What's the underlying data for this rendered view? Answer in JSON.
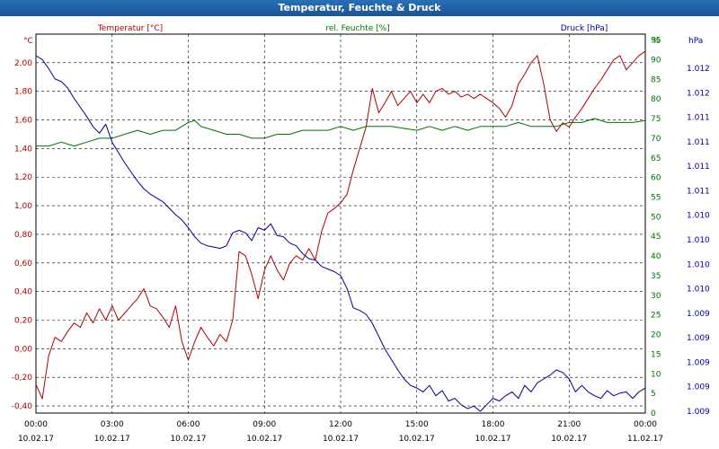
{
  "window": {
    "title": "Temperatur, Feuchte & Druck"
  },
  "chart_data": {
    "type": "line",
    "title": "Temperatur, Feuchte & Druck",
    "grid": true,
    "colors": {
      "temperature": "#b00000",
      "humidity": "#007000",
      "pressure": "#000090"
    },
    "x_ticks": [
      {
        "time": "00:00",
        "date": "10.02.17"
      },
      {
        "time": "03:00",
        "date": "10.02.17"
      },
      {
        "time": "06:00",
        "date": "10.02.17"
      },
      {
        "time": "09:00",
        "date": "10.02.17"
      },
      {
        "time": "12:00",
        "date": "10.02.17"
      },
      {
        "time": "15:00",
        "date": "10.02.17"
      },
      {
        "time": "18:00",
        "date": "10.02.17"
      },
      {
        "time": "21:00",
        "date": "10.02.17"
      },
      {
        "time": "00:00",
        "date": "11.02.17"
      }
    ],
    "xlim": [
      "10.02.17 00:00",
      "11.02.17 00:00"
    ],
    "axes": {
      "temperature": {
        "unit_label": "°C",
        "header": "Temperatur [°C]",
        "ylim": [
          -0.45,
          2.2
        ],
        "ticks": [
          "2,00",
          "1,80",
          "1,60",
          "1,40",
          "1,20",
          "1,00",
          "0,80",
          "0,60",
          "0,40",
          "0,20",
          "0,00",
          "-0,20",
          "-0,40"
        ]
      },
      "humidity": {
        "unit_label": "%",
        "header": "rel. Feuchte [%]",
        "ylim": [
          0,
          96.5
        ],
        "ticks": [
          "95",
          "90",
          "85",
          "80",
          "75",
          "70",
          "65",
          "60",
          "55",
          "50",
          "45",
          "40",
          "35",
          "30",
          "25",
          "20",
          "15",
          "10",
          "5",
          "0"
        ]
      },
      "pressure": {
        "unit_label": "hPa",
        "header": "Druck [hPa]",
        "ticks": [
          "1.012",
          "1.012",
          "1.011",
          "1.011",
          "1.011",
          "1.011",
          "1.010",
          "1.010",
          "1.010",
          "1.010",
          "1.009",
          "1.009",
          "1.009",
          "1.009",
          "1.009"
        ]
      }
    },
    "series": [
      {
        "name": "Temperatur [°C]",
        "axis": "temperature",
        "x": [
          "00:00",
          "00:15",
          "00:30",
          "00:45",
          "01:00",
          "01:15",
          "01:30",
          "01:45",
          "02:00",
          "02:15",
          "02:30",
          "02:45",
          "03:00",
          "03:15",
          "03:30",
          "03:45",
          "04:00",
          "04:15",
          "04:30",
          "04:45",
          "05:00",
          "05:15",
          "05:30",
          "05:45",
          "06:00",
          "06:15",
          "06:30",
          "06:45",
          "07:00",
          "07:15",
          "07:30",
          "07:45",
          "08:00",
          "08:15",
          "08:30",
          "08:45",
          "09:00",
          "09:15",
          "09:30",
          "09:45",
          "10:00",
          "10:15",
          "10:30",
          "10:45",
          "11:00",
          "11:15",
          "11:30",
          "11:45",
          "12:00",
          "12:15",
          "12:30",
          "12:45",
          "13:00",
          "13:15",
          "13:30",
          "13:45",
          "14:00",
          "14:15",
          "14:30",
          "14:45",
          "15:00",
          "15:15",
          "15:30",
          "15:45",
          "16:00",
          "16:15",
          "16:30",
          "16:45",
          "17:00",
          "17:15",
          "17:30",
          "17:45",
          "18:00",
          "18:15",
          "18:30",
          "18:45",
          "19:00",
          "19:15",
          "19:30",
          "19:45",
          "20:00",
          "20:15",
          "20:30",
          "20:45",
          "21:00",
          "21:15",
          "21:30",
          "21:45",
          "22:00",
          "22:15",
          "22:30",
          "22:45",
          "23:00",
          "23:15",
          "23:30",
          "23:45",
          "24:00"
        ],
        "values": [
          -0.25,
          -0.35,
          -0.05,
          0.08,
          0.05,
          0.12,
          0.18,
          0.15,
          0.25,
          0.18,
          0.28,
          0.2,
          0.3,
          0.2,
          0.25,
          0.3,
          0.35,
          0.42,
          0.3,
          0.28,
          0.22,
          0.15,
          0.3,
          0.05,
          -0.08,
          0.05,
          0.15,
          0.08,
          0.02,
          0.1,
          0.05,
          0.2,
          0.68,
          0.65,
          0.52,
          0.35,
          0.55,
          0.65,
          0.55,
          0.48,
          0.6,
          0.65,
          0.62,
          0.7,
          0.62,
          0.82,
          0.95,
          0.98,
          1.02,
          1.08,
          1.25,
          1.4,
          1.55,
          1.82,
          1.65,
          1.72,
          1.8,
          1.7,
          1.75,
          1.8,
          1.72,
          1.78,
          1.72,
          1.8,
          1.82,
          1.78,
          1.8,
          1.76,
          1.78,
          1.75,
          1.78,
          1.75,
          1.72,
          1.68,
          1.62,
          1.7,
          1.85,
          1.92,
          2.0,
          2.05,
          1.85,
          1.6,
          1.52,
          1.58,
          1.55,
          1.62,
          1.68,
          1.75,
          1.82,
          1.88,
          1.95,
          2.02,
          2.05,
          1.95,
          2.0,
          2.05,
          2.08
        ]
      },
      {
        "name": "rel. Feuchte [%]",
        "axis": "humidity",
        "x": [
          "00:00",
          "00:30",
          "01:00",
          "01:30",
          "02:00",
          "02:30",
          "03:00",
          "03:30",
          "04:00",
          "04:30",
          "05:00",
          "05:30",
          "06:00",
          "06:15",
          "06:30",
          "07:00",
          "07:30",
          "08:00",
          "08:30",
          "09:00",
          "09:30",
          "10:00",
          "10:30",
          "11:00",
          "11:30",
          "12:00",
          "12:30",
          "13:00",
          "13:30",
          "14:00",
          "14:30",
          "15:00",
          "15:30",
          "16:00",
          "16:30",
          "17:00",
          "17:30",
          "18:00",
          "18:30",
          "19:00",
          "19:30",
          "20:00",
          "20:30",
          "21:00",
          "21:30",
          "22:00",
          "22:30",
          "23:00",
          "23:30",
          "24:00"
        ],
        "values": [
          68,
          68,
          69,
          68,
          69,
          70,
          70,
          71,
          72,
          71,
          72,
          72,
          74,
          74.5,
          73,
          72,
          71,
          71,
          70,
          70,
          71,
          71,
          72,
          72,
          72,
          73,
          72,
          73,
          73,
          73,
          72.5,
          72,
          73,
          72,
          73,
          72,
          73,
          73,
          73,
          74,
          73,
          73,
          73,
          74,
          74,
          75,
          74,
          74,
          74,
          74.5
        ]
      },
      {
        "name": "Druck [hPa]",
        "axis": "pressure",
        "x": [
          "00:00",
          "00:15",
          "00:30",
          "00:45",
          "01:00",
          "01:15",
          "01:30",
          "01:45",
          "02:00",
          "02:15",
          "02:30",
          "02:45",
          "03:00",
          "03:15",
          "03:30",
          "03:45",
          "04:00",
          "04:15",
          "04:30",
          "04:45",
          "05:00",
          "05:15",
          "05:30",
          "05:45",
          "06:00",
          "06:15",
          "06:30",
          "06:45",
          "07:00",
          "07:15",
          "07:30",
          "07:45",
          "08:00",
          "08:15",
          "08:30",
          "08:45",
          "09:00",
          "09:15",
          "09:30",
          "09:45",
          "10:00",
          "10:15",
          "10:30",
          "10:45",
          "11:00",
          "11:15",
          "11:30",
          "11:45",
          "12:00",
          "12:15",
          "12:30",
          "12:45",
          "13:00",
          "13:15",
          "13:30",
          "13:45",
          "14:00",
          "14:15",
          "14:30",
          "14:45",
          "15:00",
          "15:15",
          "15:30",
          "15:45",
          "16:00",
          "16:15",
          "16:30",
          "16:45",
          "17:00",
          "17:15",
          "17:30",
          "17:45",
          "18:00",
          "18:15",
          "18:30",
          "18:45",
          "19:00",
          "19:15",
          "19:30",
          "19:45",
          "20:00",
          "20:15",
          "20:30",
          "20:45",
          "21:00",
          "21:15",
          "21:30",
          "21:45",
          "22:00",
          "22:15",
          "22:30",
          "22:45",
          "23:00",
          "23:15",
          "23:30",
          "23:45",
          "24:00"
        ],
        "values": [
          1012.15,
          1012.12,
          1012.05,
          1011.97,
          1011.95,
          1011.9,
          1011.82,
          1011.75,
          1011.68,
          1011.6,
          1011.55,
          1011.62,
          1011.48,
          1011.4,
          1011.32,
          1011.25,
          1011.18,
          1011.12,
          1011.08,
          1011.05,
          1011.02,
          1010.97,
          1010.92,
          1010.88,
          1010.82,
          1010.75,
          1010.7,
          1010.68,
          1010.67,
          1010.66,
          1010.68,
          1010.78,
          1010.8,
          1010.78,
          1010.72,
          1010.82,
          1010.8,
          1010.85,
          1010.76,
          1010.75,
          1010.7,
          1010.68,
          1010.62,
          1010.58,
          1010.57,
          1010.52,
          1010.5,
          1010.48,
          1010.45,
          1010.35,
          1010.2,
          1010.18,
          1010.15,
          1010.08,
          1009.98,
          1009.88,
          1009.8,
          1009.72,
          1009.65,
          1009.6,
          1009.58,
          1009.55,
          1009.6,
          1009.52,
          1009.56,
          1009.48,
          1009.5,
          1009.45,
          1009.42,
          1009.44,
          1009.4,
          1009.45,
          1009.5,
          1009.48,
          1009.52,
          1009.55,
          1009.5,
          1009.6,
          1009.55,
          1009.62,
          1009.65,
          1009.68,
          1009.72,
          1009.7,
          1009.65,
          1009.55,
          1009.6,
          1009.55,
          1009.52,
          1009.5,
          1009.56,
          1009.52,
          1009.54,
          1009.55,
          1009.5,
          1009.55,
          1009.58
        ]
      }
    ]
  }
}
